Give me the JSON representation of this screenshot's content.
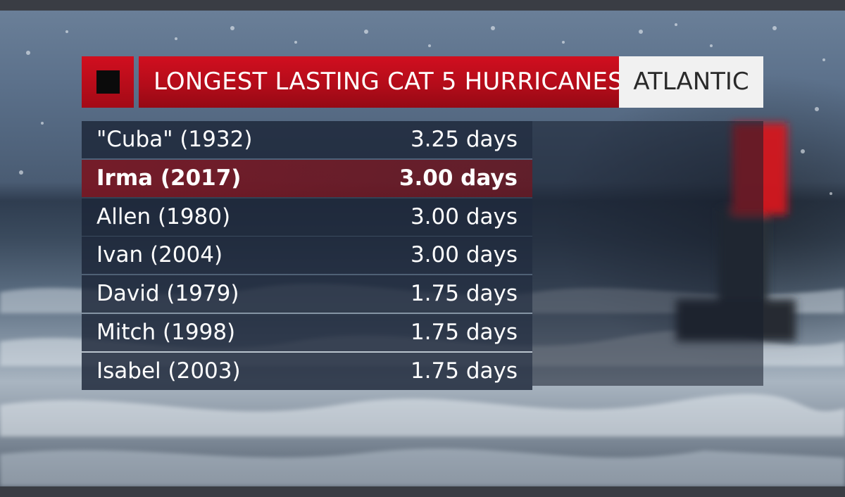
{
  "header": {
    "title": "LONGEST LASTING CAT 5 HURRICANES",
    "tag": "ATLANTIC"
  },
  "colors": {
    "accent_red": "#c40d1c",
    "highlight_row": "#7a1622",
    "panel": "#1c2638",
    "tag_bg": "#f1f1f1"
  },
  "rows": [
    {
      "name": "\"Cuba\" (1932)",
      "value": "3.25 days",
      "highlight": false
    },
    {
      "name": "Irma (2017)",
      "value": "3.00 days",
      "highlight": true
    },
    {
      "name": "Allen (1980)",
      "value": "3.00 days",
      "highlight": false
    },
    {
      "name": "Ivan (2004)",
      "value": "3.00 days",
      "highlight": false
    },
    {
      "name": "David (1979)",
      "value": "1.75 days",
      "highlight": false
    },
    {
      "name": "Mitch (1998)",
      "value": "1.75 days",
      "highlight": false
    },
    {
      "name": "Isabel (2003)",
      "value": "1.75 days",
      "highlight": false
    }
  ]
}
